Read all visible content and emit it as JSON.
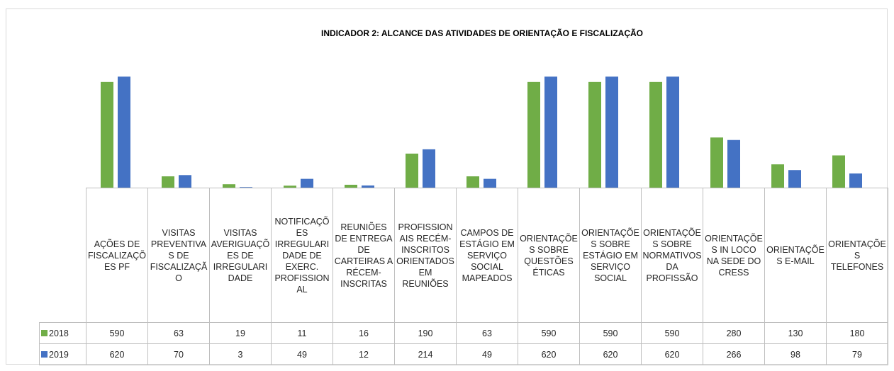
{
  "chart_data": {
    "type": "bar",
    "title": "INDICADOR 2: ALCANCE DAS ATIVIDADES DE ORIENTAÇÃO E FISCALIZAÇÃO",
    "categories": [
      "AÇÕES DE FISCALIZAÇÕES PF",
      "VISITAS PREVENTIVAS DE FISCALIZAÇÃO",
      "VISITAS AVERIGUAÇÕES DE IRREGULARIDADE",
      "NOTIFICAÇÕES IRREGULARIDADE DE EXERC. PROFISSIONAL",
      "REUNIÕES DE ENTREGA DE CARTEIRAS A RÉCEM-INSCRITAS",
      "PROFISSIONAIS RECÉM-INSCRITOS ORIENTADOS EM REUNIÕES",
      "CAMPOS DE ESTÁGIO EM SERVIÇO SOCIAL MAPEADOS",
      "ORIENTAÇÕES SOBRE QUESTÕES ÉTICAS",
      "ORIENTAÇÕES SOBRE ESTÁGIO EM SERVIÇO SOCIAL",
      "ORIENTAÇÕES SOBRE NORMATIVOS DA PROFISSÃO",
      "ORIENTAÇÕES IN LOCO NA SEDE DO CRESS",
      "ORIENTAÇÕES E-MAIL",
      "ORIENTAÇÕES TELEFONES"
    ],
    "series": [
      {
        "name": "2018",
        "color": "#70ad47",
        "values": [
          590,
          63,
          19,
          11,
          16,
          190,
          63,
          590,
          590,
          590,
          280,
          130,
          180
        ]
      },
      {
        "name": "2019",
        "color": "#4472c4",
        "values": [
          620,
          70,
          3,
          49,
          12,
          214,
          49,
          620,
          620,
          620,
          266,
          98,
          79
        ]
      }
    ],
    "ylim": [
      0,
      700
    ]
  }
}
